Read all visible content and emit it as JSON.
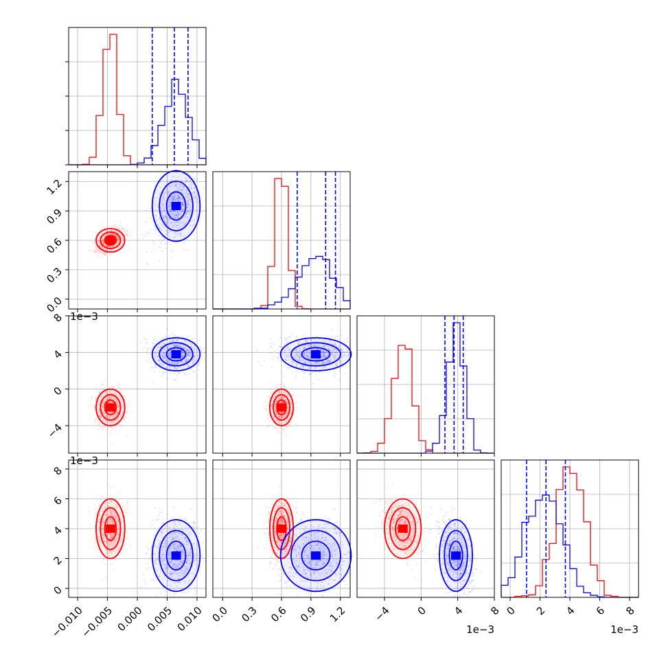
{
  "colors": {
    "series_a": "#ff0000",
    "series_b": "#0000ff",
    "grid": "#b0b0b0"
  },
  "chart_data": {
    "type": "corner",
    "description_free": true,
    "params": [
      {
        "range": [
          -0.0115,
          0.0115
        ],
        "ticks": [
          -0.01,
          -0.005,
          0.0,
          0.005,
          0.01
        ],
        "tick_labels": [
          "−0.010",
          "−0.005",
          "0.000",
          "0.005",
          "0.010"
        ],
        "offset_text": ""
      },
      {
        "range": [
          -0.1,
          1.3
        ],
        "ticks": [
          0.0,
          0.3,
          0.6,
          0.9,
          1.2
        ],
        "tick_labels": [
          "0.0",
          "0.3",
          "0.6",
          "0.9",
          "1.2"
        ],
        "offset_text": ""
      },
      {
        "range": [
          -7,
          8
        ],
        "ticks": [
          -4,
          0,
          4,
          8
        ],
        "tick_labels": [
          "−4",
          "0",
          "4",
          "8"
        ],
        "offset_text": "1e−3"
      },
      {
        "range": [
          -0.6,
          8.6
        ],
        "ticks": [
          0,
          2,
          4,
          6,
          8
        ],
        "tick_labels": [
          "0",
          "2",
          "4",
          "6",
          "8"
        ],
        "offset_text": "1e−3"
      }
    ],
    "series": [
      {
        "color": "#ff0000",
        "mean": [
          -0.0045,
          0.6,
          -2.0,
          4.0
        ],
        "sd": [
          0.0012,
          0.06,
          1.0,
          1.0
        ],
        "quantile_lines": []
      },
      {
        "color": "#0000ff",
        "mean": [
          0.0065,
          0.95,
          3.8,
          2.2
        ],
        "sd": [
          0.002,
          0.18,
          0.9,
          1.2
        ],
        "quantile_lines": [
          [
            0.0025,
            0.0062,
            0.0085
          ],
          [
            0.76,
            1.05,
            1.15
          ],
          [
            2.6,
            3.6,
            4.6
          ],
          [
            1.1,
            2.4,
            3.7
          ]
        ]
      }
    ],
    "grid": true
  }
}
